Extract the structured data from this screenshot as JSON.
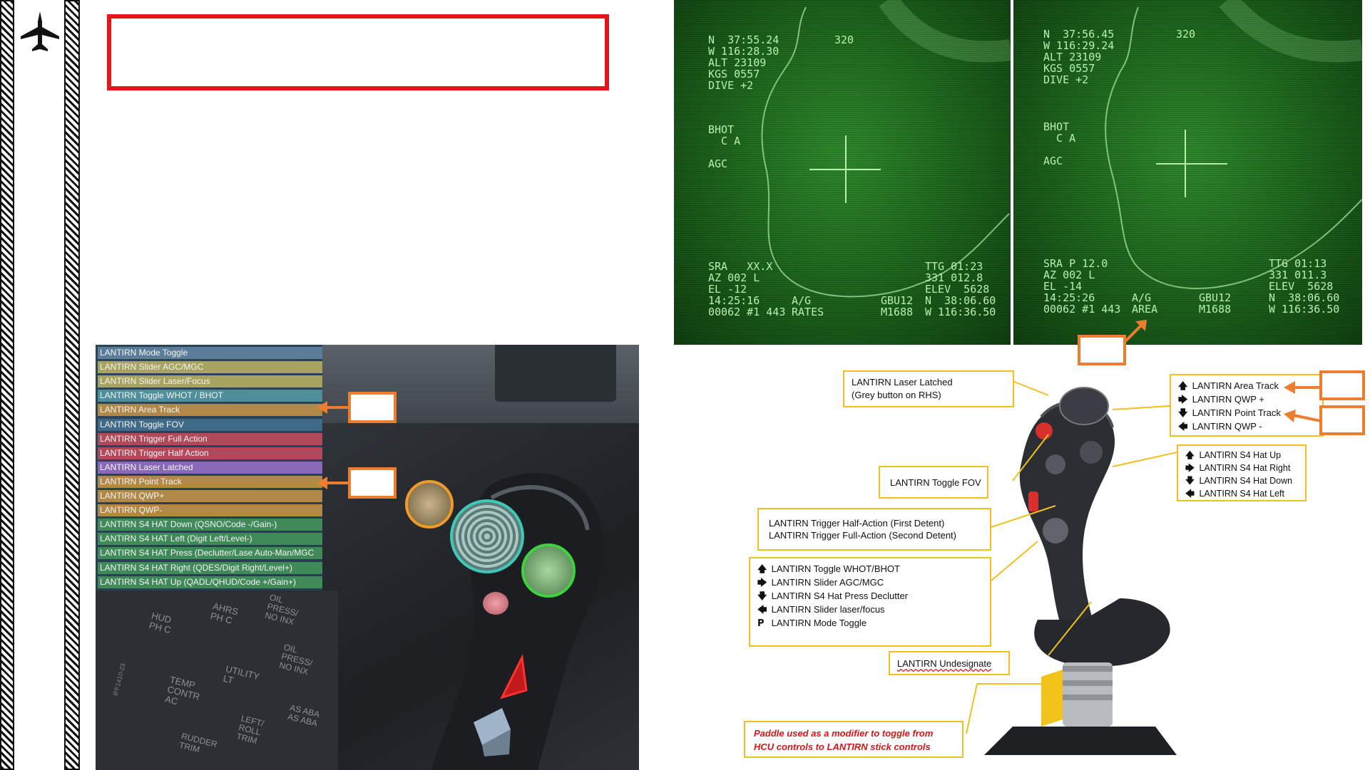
{
  "title_box": "",
  "binding_list": [
    {
      "label": "LANTIRN Mode Toggle",
      "color": "#5b7d9a"
    },
    {
      "label": "LANTIRN Slider AGC/MGC",
      "color": "#a8a460"
    },
    {
      "label": "LANTIRN Slider Laser/Focus",
      "color": "#a8a460"
    },
    {
      "label": "LANTIRN Toggle WHOT / BHOT",
      "color": "#4e8f9a"
    },
    {
      "label": "LANTIRN Area Track",
      "color": "#b08848"
    },
    {
      "label": "LANTIRN Toggle FOV",
      "color": "#3e6a88"
    },
    {
      "label": "LANTIRN Trigger Full Action",
      "color": "#b04a5a"
    },
    {
      "label": "LANTIRN Trigger Half Action",
      "color": "#b04a5a"
    },
    {
      "label": "LANTIRN Laser Latched",
      "color": "#8a68b8"
    },
    {
      "label": "LANTIRN Point Track",
      "color": "#b08848"
    },
    {
      "label": "LANTIRN QWP+",
      "color": "#b08848"
    },
    {
      "label": "LANTIRN QWP-",
      "color": "#b08848"
    },
    {
      "label": "LANTIRN S4 HAT Down (QSNO/Code -/Gain-)",
      "color": "#3f8a58"
    },
    {
      "label": "LANTIRN S4 HAT Left (Digit Left/Level-)",
      "color": "#3f8a58"
    },
    {
      "label": "LANTIRN S4 HAT Press (Declutter/Lase Auto-Man/MGC",
      "color": "#3f8a58"
    },
    {
      "label": "LANTIRN S4 HAT Right (QDES/Digit Right/Level+)",
      "color": "#3f8a58"
    },
    {
      "label": "LANTIRN S4 HAT Up (QADL/QHUD/Code +/Gain+)",
      "color": "#3f8a58"
    }
  ],
  "panel_labels": {
    "hud": "HUD\nPH C",
    "ahrs": "AHRS\nPH C",
    "oil1": "OIL\nPRESS/\nNO INX",
    "oil2": "OIL\nPRESS/\nNO INX",
    "temp": "TEMP\nCONTR\nAC",
    "utility": "UTILITY\nLT",
    "roll": "LEFT/\nROLL\nTRIM",
    "asaba": "AS ABA\nAS ABA",
    "rudder": "RUDDER\nTRIM",
    "part": "IFF1410-23"
  },
  "nvg_left": {
    "top": "N  37:55.24\nW 116:28.30\nALT 23109\nKGS 0557\nDIVE +2",
    "heading": "320",
    "mode": "BHOT\n  C A\n\nAGC",
    "bottom_left": "SRA   XX.X\nAZ 002 L\nEL -12\n14:25:16\n00062 #1 443",
    "bottom_mid": "A/G\nRATES",
    "bottom_wpn": "GBU12\nM1688",
    "bottom_right": "TTG 01:23\n331 012.8\nELEV  5628\nN  38:06.60\nW 116:36.50"
  },
  "nvg_right": {
    "top": "N  37:56.45\nW 116:29.24\nALT 23109\nKGS 0557\nDIVE +2",
    "heading": "320",
    "mode": "BHOT\n  C A\n\nAGC",
    "bottom_left": "SRA P 12.0\nAZ 002 L\nEL -14\n14:25:26\n00062 #1 443",
    "bottom_mid": "A/G\nAREA",
    "bottom_wpn": "GBU12\nM1688",
    "bottom_right": "TTG 01:13\n331 011.3\nELEV  5628\nN  38:06.60\nW 116:36.50"
  },
  "callouts": {
    "laser_latched": "LANTIRN Laser Latched\n(Grey button on RHS)",
    "toggle_fov": "LANTIRN Toggle FOV",
    "trigger": "LANTIRN Trigger Half-Action (First Detent)\nLANTIRN Trigger Full-Action (Second Detent)",
    "undesignate": "LANTIRN Undesignate",
    "paddle": "Paddle used as a modifier to toggle from\nHCU controls to LANTIRN stick controls"
  },
  "track_list": [
    {
      "arrow": "up",
      "label": "LANTIRN Area Track"
    },
    {
      "arrow": "right",
      "label": "LANTIRN QWP +"
    },
    {
      "arrow": "down",
      "label": "LANTIRN Point Track"
    },
    {
      "arrow": "left",
      "label": "LANTIRN QWP -"
    }
  ],
  "s4_list": [
    {
      "arrow": "up",
      "label": "LANTIRN S4 Hat Up"
    },
    {
      "arrow": "right",
      "label": "LANTIRN S4 Hat Right"
    },
    {
      "arrow": "down",
      "label": "LANTIRN S4 Hat Down"
    },
    {
      "arrow": "left",
      "label": "LANTIRN S4 Hat Left"
    }
  ],
  "whot_list": [
    {
      "arrow": "up",
      "label": "LANTIRN Toggle WHOT/BHOT"
    },
    {
      "arrow": "right",
      "label": "LANTIRN Slider AGC/MGC"
    },
    {
      "arrow": "down",
      "label": "LANTIRN S4 Hat Press Declutter"
    },
    {
      "arrow": "left",
      "label": "LANTIRN Slider laser/focus"
    },
    {
      "arrow": "P",
      "label": "LANTIRN Mode Toggle"
    }
  ],
  "arrow_glyphs": {
    "up": "🡅",
    "right": "🡆",
    "down": "🡇",
    "left": "🡄",
    "P": "P"
  }
}
